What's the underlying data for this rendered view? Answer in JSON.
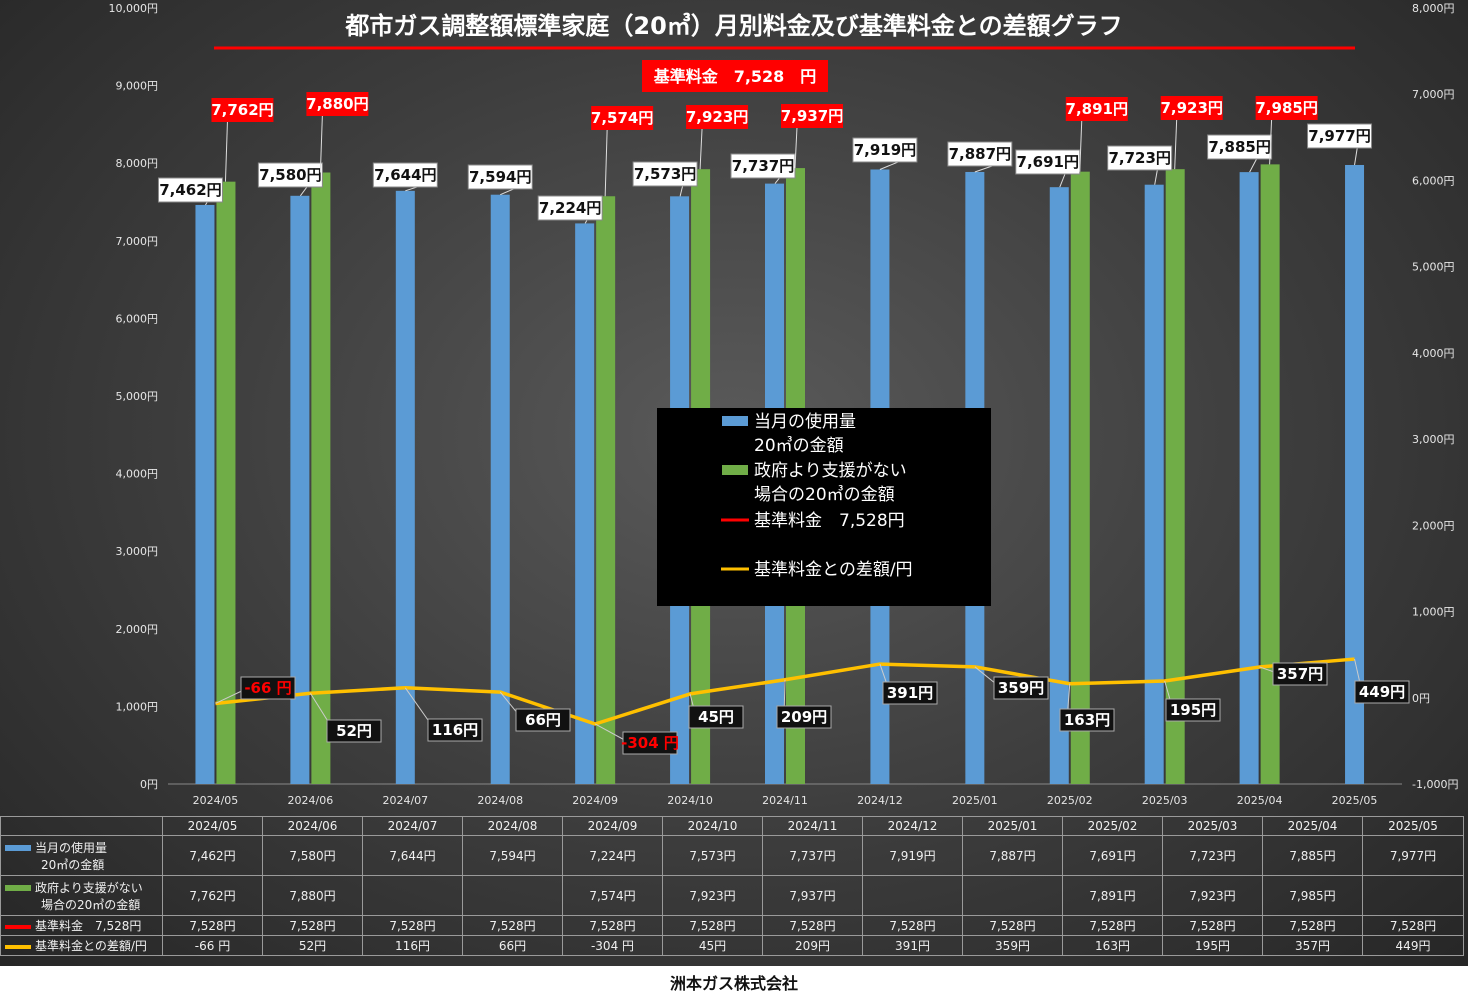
{
  "chart_data": {
    "type": "bar",
    "title": "都市ガス調整額標準家庭（20㎥）月別料金及び基準料金との差額グラフ",
    "badge": "基準料金　7,528　円",
    "categories": [
      "2024/05",
      "2024/06",
      "2024/07",
      "2024/08",
      "2024/09",
      "2024/10",
      "2024/11",
      "2024/12",
      "2025/01",
      "2025/02",
      "2025/03",
      "2025/04",
      "2025/05"
    ],
    "ylim": [
      0,
      10000
    ],
    "y2lim": [
      -1000,
      8000
    ],
    "y_ticks": [
      "0円",
      "1,000円",
      "2,000円",
      "3,000円",
      "4,000円",
      "5,000円",
      "6,000円",
      "7,000円",
      "8,000円",
      "9,000円",
      "10,000円"
    ],
    "y2_ticks": [
      "-1,000円",
      "0円",
      "1,000円",
      "2,000円",
      "3,000円",
      "4,000円",
      "5,000円",
      "6,000円",
      "7,000円",
      "8,000円"
    ],
    "colors": {
      "blue": "#5b9bd5",
      "green": "#70ad47",
      "red": "#ff0000",
      "yellow": "#ffc000"
    },
    "series": [
      {
        "name": "当月の使用量20㎥の金額",
        "legend": [
          "当月の使用量",
          "20㎥の金額"
        ],
        "values": [
          7462,
          7580,
          7644,
          7594,
          7224,
          7573,
          7737,
          7919,
          7887,
          7691,
          7723,
          7885,
          7977
        ],
        "labels": [
          "7,462円",
          "7,580円",
          "7,644円",
          "7,594円",
          "7,224円",
          "7,573円",
          "7,737円",
          "7,919円",
          "7,887円",
          "7,691円",
          "7,723円",
          "7,885円",
          "7,977円"
        ]
      },
      {
        "name": "政府より支援がない場合の20㎥の金額",
        "legend": [
          "政府より支援がない",
          "場合の20㎥の金額"
        ],
        "values": [
          7762,
          7880,
          null,
          null,
          7574,
          7923,
          7937,
          null,
          null,
          7891,
          7923,
          7985,
          null
        ],
        "labels": [
          "7,762円",
          "7,880円",
          "",
          "",
          "7,574円",
          "7,923円",
          "7,937円",
          "",
          "",
          "7,891円",
          "7,923円",
          "7,985円",
          ""
        ]
      },
      {
        "name": "基準料金　7,528円",
        "legend": [
          "基準料金　7,528円"
        ],
        "values": [
          7528,
          7528,
          7528,
          7528,
          7528,
          7528,
          7528,
          7528,
          7528,
          7528,
          7528,
          7528,
          7528
        ],
        "labels": [
          "7,528円",
          "7,528円",
          "7,528円",
          "7,528円",
          "7,528円",
          "7,528円",
          "7,528円",
          "7,528円",
          "7,528円",
          "7,528円",
          "7,528円",
          "7,528円",
          "7,528円"
        ]
      },
      {
        "name": "基準料金との差額/円",
        "legend": [
          "基準料金との差額/円"
        ],
        "values": [
          -66,
          52,
          116,
          66,
          -304,
          45,
          209,
          391,
          359,
          163,
          195,
          357,
          449
        ],
        "labels": [
          "-66 円",
          "52円",
          "116円",
          "66円",
          "-304 円",
          "45円",
          "209円",
          "391円",
          "359円",
          "163円",
          "195円",
          "357円",
          "449円"
        ]
      }
    ]
  },
  "table": {
    "rows": [
      {
        "legend": [
          "当月の使用量",
          "20㎥の金額"
        ],
        "cells": [
          "7,462円",
          "7,580円",
          "7,644円",
          "7,594円",
          "7,224円",
          "7,573円",
          "7,737円",
          "7,919円",
          "7,887円",
          "7,691円",
          "7,723円",
          "7,885円",
          "7,977円"
        ]
      },
      {
        "legend": [
          "政府より支援がない",
          "場合の20㎥の金額"
        ],
        "cells": [
          "7,762円",
          "7,880円",
          "",
          "",
          "7,574円",
          "7,923円",
          "7,937円",
          "",
          "",
          "7,891円",
          "7,923円",
          "7,985円",
          ""
        ]
      },
      {
        "legend": [
          "基準料金　7,528円"
        ],
        "cells": [
          "7,528円",
          "7,528円",
          "7,528円",
          "7,528円",
          "7,528円",
          "7,528円",
          "7,528円",
          "7,528円",
          "7,528円",
          "7,528円",
          "7,528円",
          "7,528円",
          "7,528円"
        ]
      },
      {
        "legend": [
          "基準料金との差額/円"
        ],
        "cells": [
          "-66 円",
          "52円",
          "116円",
          "66円",
          "-304 円",
          "45円",
          "209円",
          "391円",
          "359円",
          "163円",
          "195円",
          "357円",
          "449円"
        ]
      }
    ]
  },
  "footer": "洲本ガス株式会社"
}
